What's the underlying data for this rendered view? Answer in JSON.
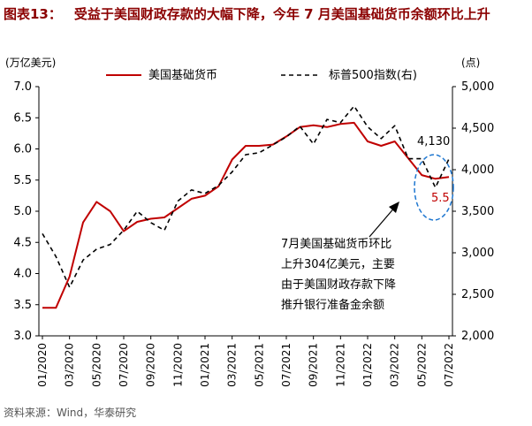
{
  "figure": {
    "label": "图表13：",
    "title": "受益于美国财政存款的大幅下降，今年 7 月美国基础货币余额环比上升",
    "source": "资料来源：Wind，华泰研究"
  },
  "chart_data": {
    "type": "line",
    "left_axis": {
      "unit_label": "(万亿美元)",
      "ylim": [
        3.0,
        7.0
      ],
      "ticks": [
        "3.0",
        "3.5",
        "4.0",
        "4.5",
        "5.0",
        "5.5",
        "6.0",
        "6.5",
        "7.0"
      ]
    },
    "right_axis": {
      "unit_label": "(点)",
      "ylim": [
        2000,
        5000
      ],
      "ticks": [
        "2,000",
        "2,500",
        "3,000",
        "3,500",
        "4,000",
        "4,500",
        "5,000"
      ]
    },
    "x_tick_labels": [
      "01/2020",
      "03/2020",
      "05/2020",
      "07/2020",
      "09/2020",
      "11/2020",
      "01/2021",
      "03/2021",
      "05/2021",
      "07/2021",
      "09/2021",
      "11/2021",
      "01/2022",
      "03/2022",
      "05/2022",
      "07/2022"
    ],
    "x": [
      "2020-01",
      "2020-02",
      "2020-03",
      "2020-04",
      "2020-05",
      "2020-06",
      "2020-07",
      "2020-08",
      "2020-09",
      "2020-10",
      "2020-11",
      "2020-12",
      "2021-01",
      "2021-02",
      "2021-03",
      "2021-04",
      "2021-05",
      "2021-06",
      "2021-07",
      "2021-08",
      "2021-09",
      "2021-10",
      "2021-11",
      "2021-12",
      "2022-01",
      "2022-02",
      "2022-03",
      "2022-04",
      "2022-05",
      "2022-06",
      "2022-07"
    ],
    "series": [
      {
        "name": "美国基础货币",
        "axis": "left",
        "color": "#C00000",
        "dash": false,
        "values": [
          3.45,
          3.45,
          3.95,
          4.82,
          5.15,
          5.0,
          4.68,
          4.83,
          4.88,
          4.9,
          5.05,
          5.2,
          5.25,
          5.4,
          5.83,
          6.05,
          6.05,
          6.07,
          6.2,
          6.35,
          6.38,
          6.35,
          6.4,
          6.42,
          6.12,
          6.05,
          6.12,
          5.85,
          5.58,
          5.52,
          5.55
        ]
      },
      {
        "name": "标普500指数(右)",
        "axis": "right",
        "color": "#000000",
        "dash": true,
        "values": [
          3230,
          2954,
          2585,
          2912,
          3044,
          3100,
          3271,
          3500,
          3363,
          3270,
          3622,
          3756,
          3714,
          3811,
          3973,
          4181,
          4204,
          4298,
          4395,
          4523,
          4308,
          4605,
          4567,
          4766,
          4516,
          4374,
          4530,
          4132,
          4132,
          3785,
          4130
        ]
      }
    ],
    "annotations": {
      "sp500_last": "4,130",
      "base_money_last": "5.5",
      "note": [
        "7月美国基础货币环比",
        "上升304亿美元，主要",
        "由于美国财政存款下降",
        "推升银行准备金余额"
      ]
    },
    "grid": false,
    "legend_position": "top"
  }
}
